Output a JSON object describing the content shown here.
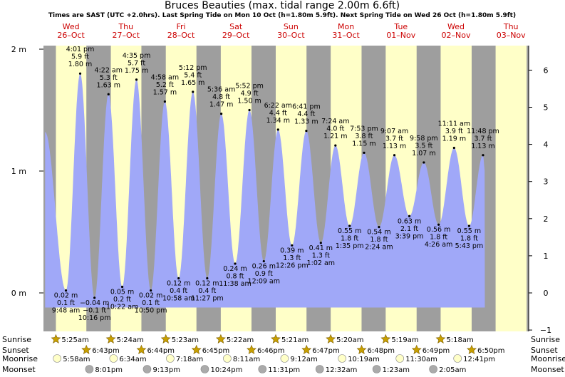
{
  "title": "Bruces Beauties (max. tidal range 2.00m 6.6ft)",
  "subtitle": "Times are SAST (UTC +2.0hrs). Last Spring Tide on Mon 10 Oct (h=1.80m 5.9ft). Next Spring Tide on Wed 26 Oct (h=1.80m 5.9ft)",
  "colors": {
    "night": "#9e9e9e",
    "day": "#ffffc8",
    "tide": "#a0a8f8",
    "day_label": "#cc0000",
    "sun_icon": "#c8a000",
    "moon_light": "#ffffc8",
    "moon_dark": "#aaaaaa"
  },
  "chart_data": {
    "type": "area",
    "title": "Bruces Beauties (max. tidal range 2.00m 6.6ft)",
    "y_left_unit": "m",
    "y_right_unit": "ft",
    "y_left_ticks": [
      {
        "value": 0,
        "label": "0 m"
      },
      {
        "value": 1,
        "label": "1 m"
      },
      {
        "value": 2,
        "label": "2 m"
      }
    ],
    "y_right_ticks": [
      {
        "value": -1,
        "label": "−1 ft"
      },
      {
        "value": 0,
        "label": "0 ft"
      },
      {
        "value": 1,
        "label": "1 ft"
      },
      {
        "value": 2,
        "label": "2 ft"
      },
      {
        "value": 3,
        "label": "3 ft"
      },
      {
        "value": 4,
        "label": "4 ft"
      },
      {
        "value": 5,
        "label": "5 ft"
      },
      {
        "value": 6,
        "label": "6 ft"
      }
    ],
    "days": [
      {
        "weekday": "Wed",
        "date": "26–Oct",
        "day_start": 5.43,
        "day_end": 18.72
      },
      {
        "weekday": "Thu",
        "date": "27–Oct",
        "day_start": 5.4,
        "day_end": 18.73
      },
      {
        "weekday": "Fri",
        "date": "28–Oct",
        "day_start": 5.38,
        "day_end": 18.75
      },
      {
        "weekday": "Sat",
        "date": "29–Oct",
        "day_start": 5.37,
        "day_end": 18.77
      },
      {
        "weekday": "Sun",
        "date": "30–Oct",
        "day_start": 5.35,
        "day_end": 18.78
      },
      {
        "weekday": "Mon",
        "date": "31–Oct",
        "day_start": 5.33,
        "day_end": 18.8
      },
      {
        "weekday": "Tue",
        "date": "01–Nov",
        "day_start": 5.32,
        "day_end": 18.82
      },
      {
        "weekday": "Wed",
        "date": "02–Nov",
        "day_start": 5.3,
        "day_end": 18.83
      },
      {
        "weekday": "Thu",
        "date": "03–Nov",
        "day_start": 5.28,
        "day_end": 18.83
      }
    ],
    "tides": [
      {
        "day": 0,
        "hour": 9.8,
        "height": 0.02,
        "type": "low",
        "m": "0.02 m",
        "ft": "0.1 ft",
        "time": "9:48 am"
      },
      {
        "day": 0,
        "hour": 16.02,
        "height": 1.8,
        "type": "high",
        "m": "1.80 m",
        "ft": "5.9 ft",
        "time": "4:01 pm"
      },
      {
        "day": 0,
        "hour": 22.27,
        "height": -0.04,
        "type": "low",
        "m": "−0.04 m",
        "ft": "−0.1 ft",
        "time": "10:16 pm"
      },
      {
        "day": 1,
        "hour": 4.37,
        "height": 1.63,
        "type": "high",
        "m": "1.63 m",
        "ft": "5.3 ft",
        "time": "4:22 am"
      },
      {
        "day": 1,
        "hour": 10.37,
        "height": 0.05,
        "type": "low",
        "m": "0.05 m",
        "ft": "0.2 ft",
        "time": "10:22 am"
      },
      {
        "day": 1,
        "hour": 16.58,
        "height": 1.75,
        "type": "high",
        "m": "1.75 m",
        "ft": "5.7 ft",
        "time": "4:35 pm"
      },
      {
        "day": 1,
        "hour": 22.83,
        "height": 0.02,
        "type": "low",
        "m": "0.02 m",
        "ft": "0.1 ft",
        "time": "10:50 pm"
      },
      {
        "day": 2,
        "hour": 4.97,
        "height": 1.57,
        "type": "high",
        "m": "1.57 m",
        "ft": "5.2 ft",
        "time": "4:58 am"
      },
      {
        "day": 2,
        "hour": 10.97,
        "height": 0.12,
        "type": "low",
        "m": "0.12 m",
        "ft": "0.4 ft",
        "time": "10:58 am"
      },
      {
        "day": 2,
        "hour": 17.2,
        "height": 1.65,
        "type": "high",
        "m": "1.65 m",
        "ft": "5.4 ft",
        "time": "5:12 pm"
      },
      {
        "day": 2,
        "hour": 23.45,
        "height": 0.12,
        "type": "low",
        "m": "0.12 m",
        "ft": "0.4 ft",
        "time": "11:27 pm"
      },
      {
        "day": 3,
        "hour": 5.6,
        "height": 1.47,
        "type": "high",
        "m": "1.47 m",
        "ft": "4.8 ft",
        "time": "5:36 am"
      },
      {
        "day": 3,
        "hour": 11.63,
        "height": 0.24,
        "type": "low",
        "m": "0.24 m",
        "ft": "0.8 ft",
        "time": "11:38 am"
      },
      {
        "day": 3,
        "hour": 17.87,
        "height": 1.5,
        "type": "high",
        "m": "1.50 m",
        "ft": "4.9 ft",
        "time": "5:52 pm"
      },
      {
        "day": 4,
        "hour": 0.15,
        "height": 0.26,
        "type": "low",
        "m": "0.26 m",
        "ft": "0.9 ft",
        "time": "12:09 am"
      },
      {
        "day": 4,
        "hour": 6.37,
        "height": 1.34,
        "type": "high",
        "m": "1.34 m",
        "ft": "4.4 ft",
        "time": "6:22 am"
      },
      {
        "day": 4,
        "hour": 12.43,
        "height": 0.39,
        "type": "low",
        "m": "0.39 m",
        "ft": "1.3 ft",
        "time": "12:26 pm"
      },
      {
        "day": 4,
        "hour": 18.68,
        "height": 1.33,
        "type": "high",
        "m": "1.33 m",
        "ft": "4.4 ft",
        "time": "6:41 pm"
      },
      {
        "day": 5,
        "hour": 1.03,
        "height": 0.41,
        "type": "low",
        "m": "0.41 m",
        "ft": "1.3 ft",
        "time": "1:02 am"
      },
      {
        "day": 5,
        "hour": 7.4,
        "height": 1.21,
        "type": "high",
        "m": "1.21 m",
        "ft": "4.0 ft",
        "time": "7:24 am"
      },
      {
        "day": 5,
        "hour": 13.58,
        "height": 0.55,
        "type": "low",
        "m": "0.55 m",
        "ft": "1.8 ft",
        "time": "1:35 pm"
      },
      {
        "day": 5,
        "hour": 19.88,
        "height": 1.15,
        "type": "high",
        "m": "1.15 m",
        "ft": "3.8 ft",
        "time": "7:53 pm"
      },
      {
        "day": 6,
        "hour": 2.4,
        "height": 0.54,
        "type": "low",
        "m": "0.54 m",
        "ft": "1.8 ft",
        "time": "2:24 am"
      },
      {
        "day": 6,
        "hour": 9.12,
        "height": 1.13,
        "type": "high",
        "m": "1.13 m",
        "ft": "3.7 ft",
        "time": "9:07 am"
      },
      {
        "day": 6,
        "hour": 15.65,
        "height": 0.63,
        "type": "low",
        "m": "0.63 m",
        "ft": "2.1 ft",
        "time": "3:39 pm"
      },
      {
        "day": 6,
        "hour": 21.97,
        "height": 1.07,
        "type": "high",
        "m": "1.07 m",
        "ft": "3.5 ft",
        "time": "9:58 pm"
      },
      {
        "day": 7,
        "hour": 4.43,
        "height": 0.56,
        "type": "low",
        "m": "0.56 m",
        "ft": "1.8 ft",
        "time": "4:26 am"
      },
      {
        "day": 7,
        "hour": 11.18,
        "height": 1.19,
        "type": "high",
        "m": "1.19 m",
        "ft": "3.9 ft",
        "time": "11:11 am"
      },
      {
        "day": 7,
        "hour": 17.72,
        "height": 0.55,
        "type": "low",
        "m": "0.55 m",
        "ft": "1.8 ft",
        "time": "5:43 pm"
      },
      {
        "day": 7,
        "hour": 23.8,
        "height": 1.13,
        "type": "high",
        "m": "1.13 m",
        "ft": "3.7 ft",
        "time": "11:48 pm"
      }
    ],
    "curve_extent": {
      "start_day": 0,
      "start_hour": 0.7,
      "start_height": 1.32,
      "end_day": 8,
      "end_hour": 0.6,
      "end_height": 1.0
    }
  },
  "astro": {
    "labels": {
      "sunrise": "Sunrise",
      "sunset": "Sunset",
      "moonrise": "Moonrise",
      "moonset": "Moonset"
    },
    "sunrise": [
      {
        "day": 0,
        "hour": 5.42,
        "text": "5:25am"
      },
      {
        "day": 1,
        "hour": 5.4,
        "text": "5:24am"
      },
      {
        "day": 2,
        "hour": 5.38,
        "text": "5:23am"
      },
      {
        "day": 3,
        "hour": 5.37,
        "text": "5:22am"
      },
      {
        "day": 4,
        "hour": 5.35,
        "text": "5:21am"
      },
      {
        "day": 5,
        "hour": 5.33,
        "text": "5:20am"
      },
      {
        "day": 6,
        "hour": 5.32,
        "text": "5:19am"
      },
      {
        "day": 7,
        "hour": 5.3,
        "text": "5:18am"
      }
    ],
    "sunset": [
      {
        "day": 0,
        "hour": 18.72,
        "text": "6:43pm"
      },
      {
        "day": 1,
        "hour": 18.73,
        "text": "6:44pm"
      },
      {
        "day": 2,
        "hour": 18.75,
        "text": "6:45pm"
      },
      {
        "day": 3,
        "hour": 18.77,
        "text": "6:46pm"
      },
      {
        "day": 4,
        "hour": 18.78,
        "text": "6:47pm"
      },
      {
        "day": 5,
        "hour": 18.8,
        "text": "6:48pm"
      },
      {
        "day": 6,
        "hour": 18.82,
        "text": "6:49pm"
      },
      {
        "day": 7,
        "hour": 18.83,
        "text": "6:50pm"
      }
    ],
    "moonrise": [
      {
        "day": 0,
        "hour": 5.97,
        "text": "5:58am"
      },
      {
        "day": 1,
        "hour": 6.57,
        "text": "6:34am"
      },
      {
        "day": 2,
        "hour": 7.3,
        "text": "7:18am"
      },
      {
        "day": 3,
        "hour": 8.18,
        "text": "8:11am"
      },
      {
        "day": 4,
        "hour": 9.2,
        "text": "9:12am"
      },
      {
        "day": 5,
        "hour": 10.32,
        "text": "10:19am"
      },
      {
        "day": 6,
        "hour": 11.5,
        "text": "11:30am"
      },
      {
        "day": 7,
        "hour": 12.68,
        "text": "12:41pm"
      }
    ],
    "moonset": [
      {
        "day": 0,
        "hour": 20.02,
        "text": "8:01pm"
      },
      {
        "day": 1,
        "hour": 21.22,
        "text": "9:13pm"
      },
      {
        "day": 2,
        "hour": 22.4,
        "text": "10:24pm"
      },
      {
        "day": 3,
        "hour": 23.52,
        "text": "11:31pm"
      },
      {
        "day": 5,
        "hour": 0.53,
        "text": "12:32am"
      },
      {
        "day": 6,
        "hour": 1.38,
        "text": "1:23am"
      },
      {
        "day": 7,
        "hour": 2.08,
        "text": "2:05am"
      }
    ]
  }
}
